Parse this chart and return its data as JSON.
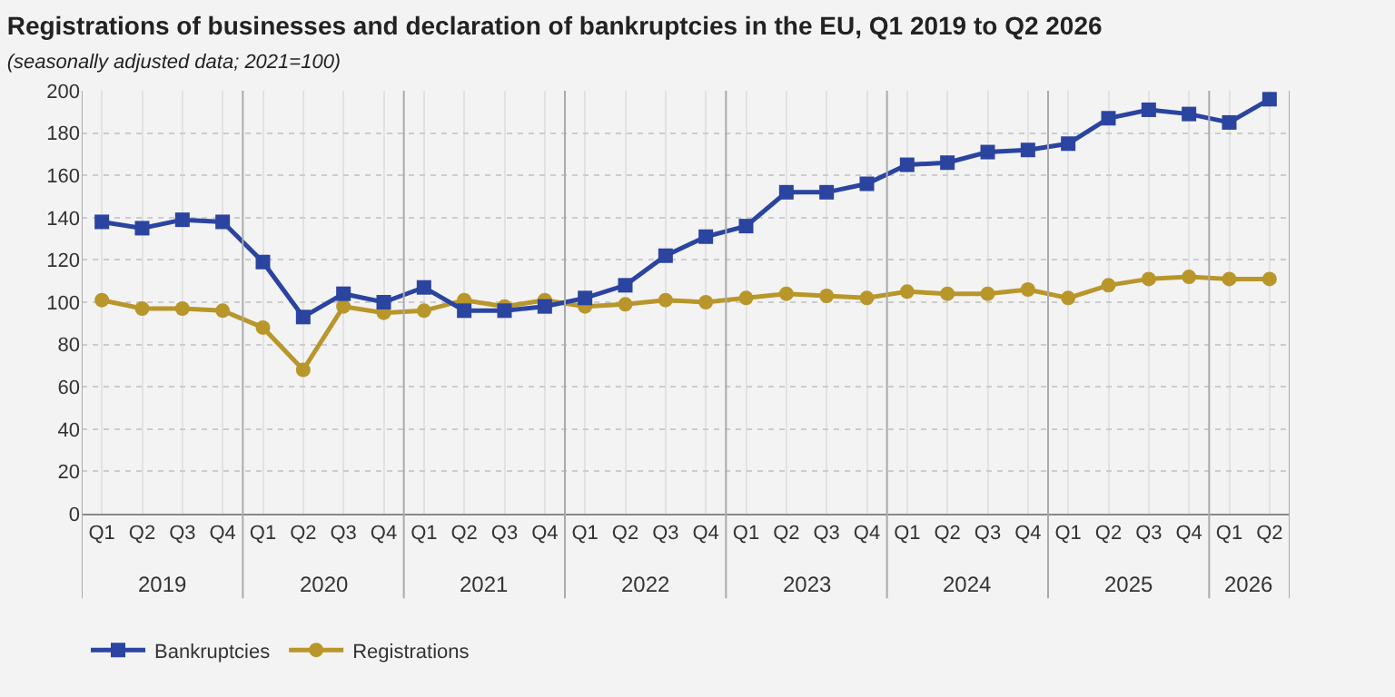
{
  "chart_data": {
    "type": "line",
    "title": "Registrations of businesses and declaration of bankruptcies in the EU, Q1 2019 to Q2 2026",
    "subtitle": "(seasonally adjusted data; 2021=100)",
    "categories": [
      "Q1",
      "Q2",
      "Q3",
      "Q4",
      "Q1",
      "Q2",
      "Q3",
      "Q4",
      "Q1",
      "Q2",
      "Q3",
      "Q4",
      "Q1",
      "Q2",
      "Q3",
      "Q4",
      "Q1",
      "Q2",
      "Q3",
      "Q4",
      "Q1",
      "Q2",
      "Q3",
      "Q4",
      "Q1",
      "Q2",
      "Q3",
      "Q4",
      "Q1",
      "Q2"
    ],
    "annotations": [
      "2019",
      "2020",
      "2021",
      "2022",
      "2023",
      "2024",
      "2025",
      "2026"
    ],
    "series": [
      {
        "name": "Bankruptcies",
        "color": "#2a44a0",
        "marker": "square",
        "values": [
          138,
          135,
          139,
          138,
          119,
          93,
          104,
          100,
          107,
          96,
          96,
          98,
          102,
          108,
          122,
          131,
          136,
          152,
          152,
          156,
          165,
          166,
          171,
          172,
          175,
          187,
          191,
          189,
          185,
          196
        ]
      },
      {
        "name": "Registrations",
        "color": "#b8962a",
        "marker": "circle",
        "values": [
          101,
          97,
          97,
          96,
          88,
          68,
          98,
          95,
          96,
          101,
          98,
          101,
          98,
          99,
          101,
          100,
          102,
          104,
          103,
          102,
          105,
          104,
          104,
          106,
          102,
          108,
          111,
          112,
          111,
          111
        ]
      }
    ],
    "ylim": [
      0,
      200
    ],
    "yticks": [
      0,
      20,
      40,
      60,
      80,
      100,
      120,
      140,
      160,
      180,
      200
    ],
    "grid": true,
    "legend": "bottom left",
    "line_style": "solid"
  }
}
